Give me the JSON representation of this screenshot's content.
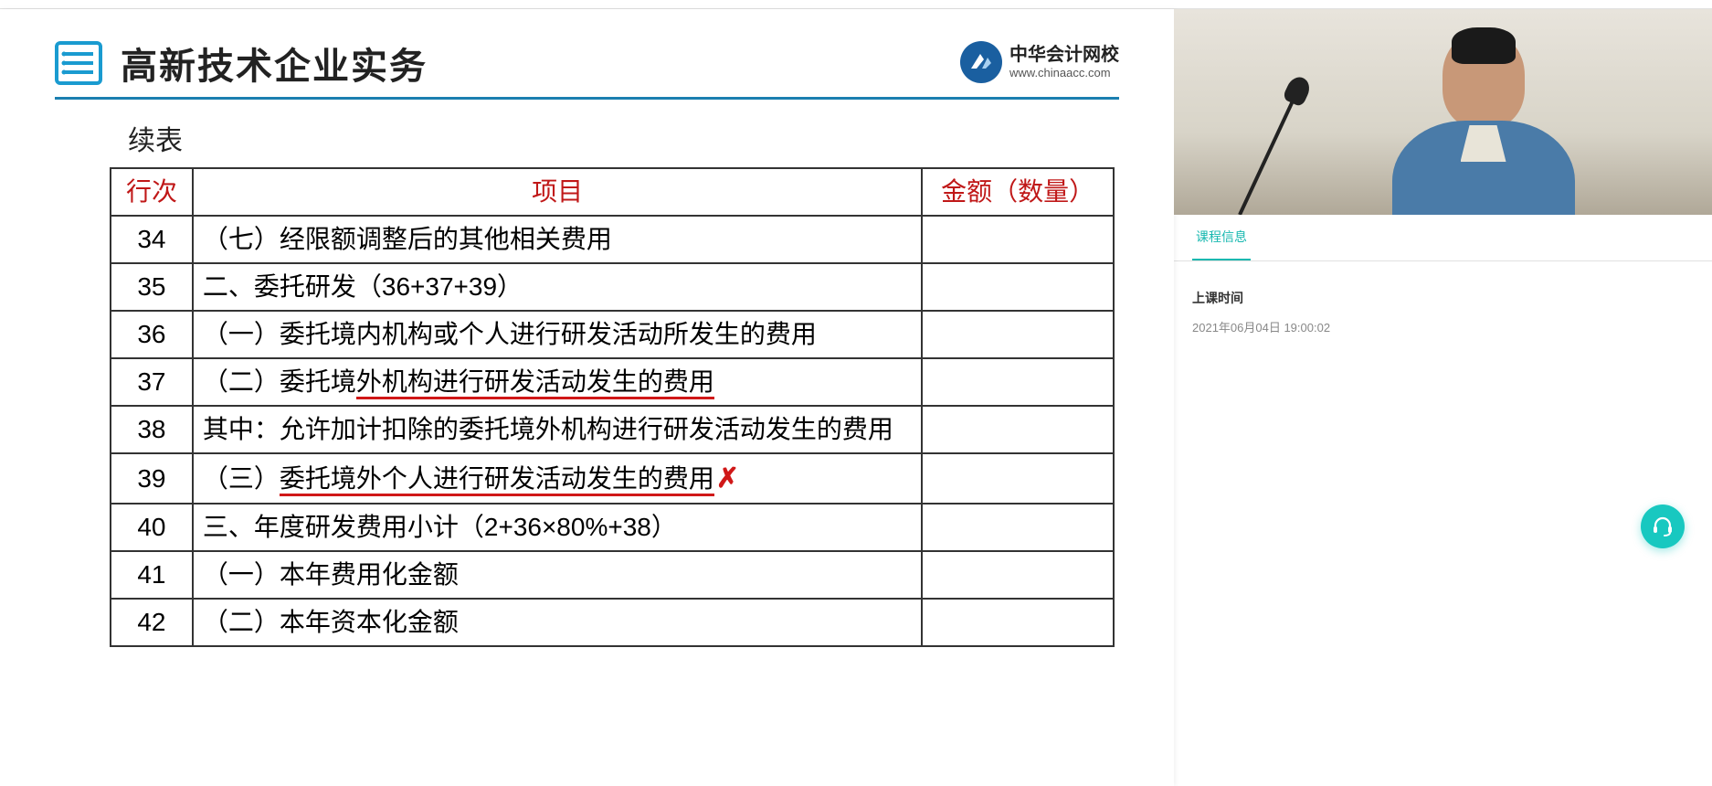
{
  "slide": {
    "title": "高新技术企业实务",
    "subheading": "续表",
    "brand": {
      "cn": "中华会计网校",
      "en": "www.chinaacc.com"
    },
    "icon_color": "#1a9bd0",
    "title_underline_color": "#1b7fb0",
    "table": {
      "headers": {
        "col1": "行次",
        "col2": "项目",
        "col3": "金额（数量）"
      },
      "header_color": "#c01818",
      "rows": [
        {
          "num": "34",
          "item": "（七）经限额调整后的其他相关费用",
          "amount": "",
          "underline": false,
          "xmark": false
        },
        {
          "num": "35",
          "item": "二、委托研发（36+37+39）",
          "amount": "",
          "underline": false,
          "xmark": false
        },
        {
          "num": "36",
          "item": "（一）委托境内机构或个人进行研发活动所发生的费用",
          "amount": "",
          "underline": false,
          "xmark": false
        },
        {
          "num": "37",
          "item_pre": "（二）委托境",
          "item_u": "外机构进行研发活动发生的费用",
          "amount": "",
          "underline": true,
          "xmark": false
        },
        {
          "num": "38",
          "item": "其中：允许加计扣除的委托境外机构进行研发活动发生的费用",
          "amount": "",
          "underline": false,
          "xmark": false
        },
        {
          "num": "39",
          "item_pre": "（三）",
          "item_u": "委托境外个人进行研发活动发生的费用",
          "amount": "",
          "underline": true,
          "xmark": true
        },
        {
          "num": "40",
          "item": "三、年度研发费用小计（2+36×80%+38）",
          "amount": "",
          "underline": false,
          "xmark": false
        },
        {
          "num": "41",
          "item": "（一）本年费用化金额",
          "amount": "",
          "underline": false,
          "xmark": false
        },
        {
          "num": "42",
          "item": "（二）本年资本化金额",
          "amount": "",
          "underline": false,
          "xmark": false
        }
      ]
    },
    "annotation_color": "#d01818"
  },
  "sidebar": {
    "tab_label": "课程信息",
    "tab_active_color": "#18b8b0",
    "info_label": "上课时间",
    "info_value": "2021年06月04日 19:00:02"
  },
  "float_button": {
    "icon": "headset",
    "bg": "#18c8c0"
  }
}
